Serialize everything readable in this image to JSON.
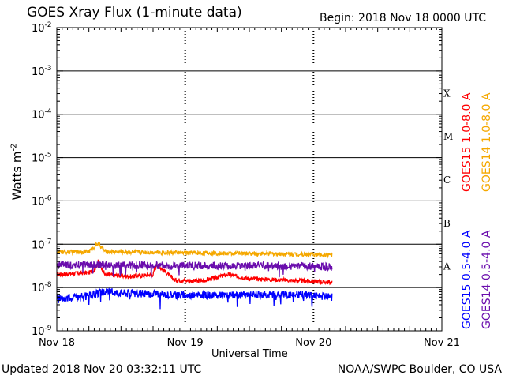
{
  "header": {
    "title": "GOES Xray Flux (1-minute data)",
    "begin": "Begin:  2018 Nov 18 0000 UTC"
  },
  "footer": {
    "updated": "Updated 2018 Nov 20 03:32:11 UTC",
    "credit": "NOAA/SWPC Boulder, CO USA"
  },
  "chart_data": {
    "type": "line",
    "title": "GOES Xray Flux (1-minute data)",
    "xlabel": "Universal Time",
    "ylabel": "Watts m",
    "ylabel_exp": "-2",
    "yscale": "log",
    "ylim": [
      1e-09,
      0.01
    ],
    "xlim": [
      "2018-11-18 00:00",
      "2018-11-21 00:00"
    ],
    "x_ticks": [
      "Nov 18",
      "Nov 19",
      "Nov 20",
      "Nov 21"
    ],
    "y_ticks": [
      {
        "base": "10",
        "exp": "-9"
      },
      {
        "base": "10",
        "exp": "-8"
      },
      {
        "base": "10",
        "exp": "-7"
      },
      {
        "base": "10",
        "exp": "-6"
      },
      {
        "base": "10",
        "exp": "-5"
      },
      {
        "base": "10",
        "exp": "-4"
      },
      {
        "base": "10",
        "exp": "-3"
      },
      {
        "base": "10",
        "exp": "-2"
      }
    ],
    "flare_classes": [
      "A",
      "B",
      "C",
      "M",
      "X"
    ],
    "grid": true,
    "legend_position": "right",
    "series": [
      {
        "name": "GOES15 1.0-8.0 A",
        "color": "#ff0000",
        "band": "long",
        "x": [
          "2018-11-18 00:00",
          "2018-11-18 06:00",
          "2018-11-18 07:00",
          "2018-11-18 07:45",
          "2018-11-18 09:00",
          "2018-11-18 14:00",
          "2018-11-18 18:00",
          "2018-11-18 18:40",
          "2018-11-18 22:00",
          "2018-11-19 03:00",
          "2018-11-19 08:00",
          "2018-11-19 12:00",
          "2018-11-19 18:00",
          "2018-11-20 00:00",
          "2018-11-20 03:30"
        ],
        "y": [
          2e-08,
          2.2e-08,
          2.5e-08,
          4e-08,
          2e-08,
          1.8e-08,
          2e-08,
          3.5e-08,
          1.5e-08,
          1.4e-08,
          2e-08,
          1.6e-08,
          1.5e-08,
          1.4e-08,
          1.3e-08
        ]
      },
      {
        "name": "GOES14 1.0-8.0 A",
        "color": "#f5a800",
        "band": "long",
        "x": [
          "2018-11-18 00:00",
          "2018-11-18 06:00",
          "2018-11-18 07:45",
          "2018-11-18 09:00",
          "2018-11-18 18:00",
          "2018-11-19 06:00",
          "2018-11-19 18:00",
          "2018-11-20 00:00",
          "2018-11-20 03:30"
        ],
        "y": [
          6.5e-08,
          6.8e-08,
          1.05e-07,
          6.8e-08,
          6.5e-08,
          6.2e-08,
          6e-08,
          5.8e-08,
          5.7e-08
        ]
      },
      {
        "name": "GOES15 0.5-4.0 A",
        "color": "#0000ff",
        "band": "short",
        "x": [
          "2018-11-18 00:00",
          "2018-11-18 06:00",
          "2018-11-18 09:00",
          "2018-11-18 18:00",
          "2018-11-19 06:00",
          "2018-11-19 18:00",
          "2018-11-20 00:00",
          "2018-11-20 03:30"
        ],
        "y": [
          5.5e-09,
          6.5e-09,
          8e-09,
          7e-09,
          6.5e-09,
          7e-09,
          6.5e-09,
          6e-09
        ]
      },
      {
        "name": "GOES14 0.5-4.0 A",
        "color": "#6a0dad",
        "band": "short",
        "x": [
          "2018-11-18 00:00",
          "2018-11-18 12:00",
          "2018-11-19 00:00",
          "2018-11-19 12:00",
          "2018-11-20 00:00",
          "2018-11-20 03:30"
        ],
        "y": [
          3.3e-08,
          3.3e-08,
          3.2e-08,
          3.2e-08,
          3.1e-08,
          3e-08
        ]
      }
    ]
  }
}
